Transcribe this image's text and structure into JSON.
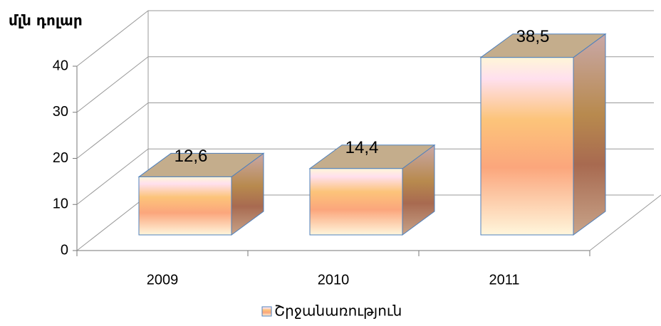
{
  "chart_data": {
    "type": "bar3d",
    "y_axis_title": "մլն դոլար",
    "categories": [
      "2009",
      "2010",
      "2011"
    ],
    "series": [
      {
        "name": "Շրջանառություն",
        "color": "#f9b07a",
        "values": [
          12.6,
          14.4,
          38.5
        ],
        "value_labels": [
          "12,6",
          "14,4",
          "38,5"
        ]
      }
    ],
    "ylim": [
      0,
      40
    ],
    "yticks": [
      0,
      10,
      20,
      30,
      40
    ],
    "grid": true,
    "legend": "bottom"
  }
}
